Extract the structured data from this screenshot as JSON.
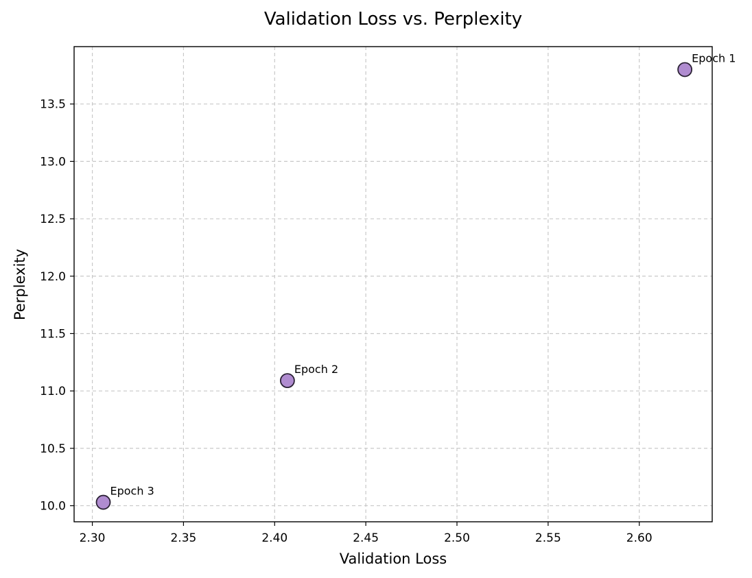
{
  "chart_data": {
    "type": "scatter",
    "title": "Validation Loss vs. Perplexity",
    "xlabel": "Validation Loss",
    "ylabel": "Perplexity",
    "xlim": [
      2.29,
      2.64
    ],
    "ylim": [
      9.86,
      14.0
    ],
    "xticks": [
      2.3,
      2.35,
      2.4,
      2.45,
      2.5,
      2.55,
      2.6
    ],
    "xtick_labels": [
      "2.30",
      "2.35",
      "2.40",
      "2.45",
      "2.50",
      "2.55",
      "2.60"
    ],
    "yticks": [
      10.0,
      10.5,
      11.0,
      11.5,
      12.0,
      12.5,
      13.0,
      13.5
    ],
    "ytick_labels": [
      "10.0",
      "10.5",
      "11.0",
      "11.5",
      "12.0",
      "12.5",
      "13.0",
      "13.5"
    ],
    "grid": true,
    "marker_color": "#b08cd0",
    "marker_edge_color": "#2b2235",
    "points": [
      {
        "x": 2.625,
        "y": 13.8,
        "label": "Epoch 1"
      },
      {
        "x": 2.407,
        "y": 11.09,
        "label": "Epoch 2"
      },
      {
        "x": 2.306,
        "y": 10.03,
        "label": "Epoch 3"
      }
    ]
  }
}
